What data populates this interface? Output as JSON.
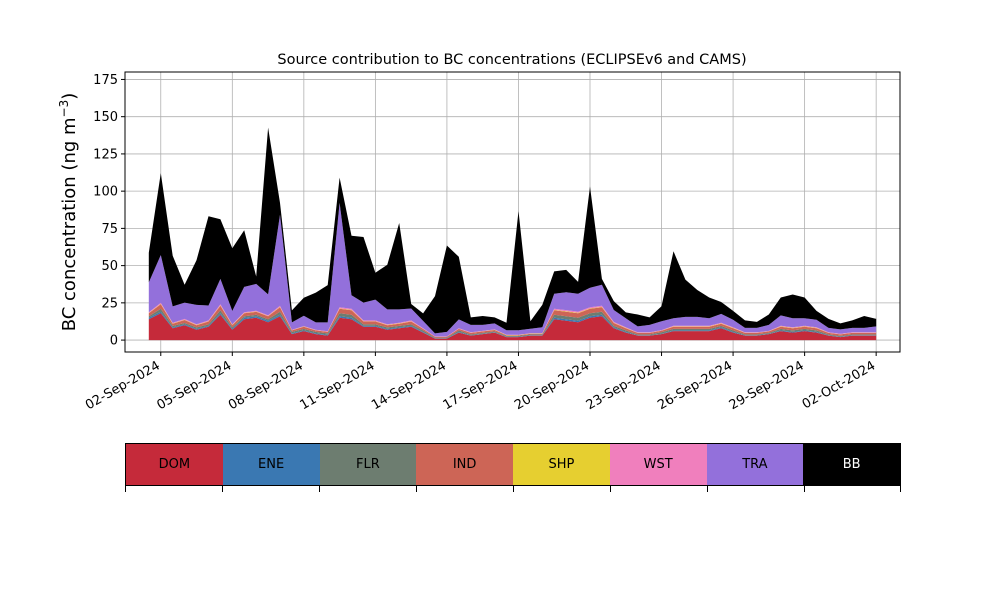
{
  "chart_data": {
    "type": "area",
    "title": "Source contribution to BC concentrations (ECLIPSEv6 and CAMS)",
    "ylabel": "BC concentration (ng m",
    "ylabel_sup": "−3",
    "ylabel_close": ")",
    "ylim": [
      -8,
      180
    ],
    "xlim": [
      "2024-08-31T12:00",
      "2024-10-03T00:00"
    ],
    "grid": true,
    "stacked": true,
    "y_ticks": [
      0,
      25,
      50,
      75,
      100,
      125,
      150,
      175
    ],
    "x_ticks": [
      {
        "date": "2024-09-02",
        "label": "02-Sep-2024"
      },
      {
        "date": "2024-09-05",
        "label": "05-Sep-2024"
      },
      {
        "date": "2024-09-08",
        "label": "08-Sep-2024"
      },
      {
        "date": "2024-09-11",
        "label": "11-Sep-2024"
      },
      {
        "date": "2024-09-14",
        "label": "14-Sep-2024"
      },
      {
        "date": "2024-09-17",
        "label": "17-Sep-2024"
      },
      {
        "date": "2024-09-20",
        "label": "20-Sep-2024"
      },
      {
        "date": "2024-09-23",
        "label": "23-Sep-2024"
      },
      {
        "date": "2024-09-26",
        "label": "26-Sep-2024"
      },
      {
        "date": "2024-09-29",
        "label": "29-Sep-2024"
      },
      {
        "date": "2024-10-02",
        "label": "02-Oct-2024"
      }
    ],
    "x": [
      "2024-09-01T12:00",
      "2024-09-02T00:00",
      "2024-09-02T12:00",
      "2024-09-03T00:00",
      "2024-09-03T12:00",
      "2024-09-04T00:00",
      "2024-09-04T12:00",
      "2024-09-05T00:00",
      "2024-09-05T12:00",
      "2024-09-06T00:00",
      "2024-09-06T12:00",
      "2024-09-07T00:00",
      "2024-09-07T12:00",
      "2024-09-08T00:00",
      "2024-09-08T12:00",
      "2024-09-09T00:00",
      "2024-09-09T12:00",
      "2024-09-10T00:00",
      "2024-09-10T12:00",
      "2024-09-11T00:00",
      "2024-09-11T12:00",
      "2024-09-12T00:00",
      "2024-09-12T12:00",
      "2024-09-13T00:00",
      "2024-09-13T12:00",
      "2024-09-14T00:00",
      "2024-09-14T12:00",
      "2024-09-15T00:00",
      "2024-09-15T12:00",
      "2024-09-16T00:00",
      "2024-09-16T12:00",
      "2024-09-17T00:00",
      "2024-09-17T12:00",
      "2024-09-18T00:00",
      "2024-09-18T12:00",
      "2024-09-19T00:00",
      "2024-09-19T12:00",
      "2024-09-20T00:00",
      "2024-09-20T12:00",
      "2024-09-21T00:00",
      "2024-09-21T12:00",
      "2024-09-22T00:00",
      "2024-09-22T12:00",
      "2024-09-23T00:00",
      "2024-09-23T12:00",
      "2024-09-24T00:00",
      "2024-09-24T12:00",
      "2024-09-25T00:00",
      "2024-09-25T12:00",
      "2024-09-26T00:00",
      "2024-09-26T12:00",
      "2024-09-27T00:00",
      "2024-09-27T12:00",
      "2024-09-28T00:00",
      "2024-09-28T12:00",
      "2024-09-29T00:00",
      "2024-09-29T12:00",
      "2024-09-30T00:00",
      "2024-09-30T12:00",
      "2024-10-01T00:00",
      "2024-10-01T12:00",
      "2024-10-02T00:00"
    ],
    "series": [
      {
        "name": "DOM",
        "color": "#c52a3a",
        "values": [
          14,
          18,
          8,
          10,
          7,
          9,
          17,
          7,
          14,
          15,
          12,
          16,
          4,
          6,
          4,
          3,
          15,
          14,
          9,
          9,
          7,
          8,
          9,
          5,
          1,
          1,
          5,
          3,
          4,
          5,
          2,
          2,
          3,
          3,
          14,
          13,
          12,
          15,
          16,
          8,
          5,
          3,
          3,
          4,
          6,
          6,
          6,
          6,
          8,
          5,
          3,
          3,
          4,
          6,
          5,
          6,
          5,
          3,
          2,
          3,
          3,
          3
        ]
      },
      {
        "name": "ENE",
        "color": "#3a78b2",
        "values": [
          1,
          1,
          0.5,
          0.5,
          0.5,
          0.5,
          1,
          0.5,
          1,
          1,
          1,
          1,
          0.5,
          0.5,
          0.5,
          0.5,
          1,
          1,
          0.5,
          0.5,
          0.5,
          0.5,
          0.5,
          0.5,
          0.2,
          0.2,
          0.5,
          0.3,
          0.3,
          0.3,
          0.3,
          0.3,
          0.3,
          0.3,
          1,
          1,
          1,
          1,
          1,
          0.5,
          0.5,
          0.3,
          0.3,
          0.3,
          0.5,
          0.5,
          0.5,
          0.5,
          0.5,
          0.5,
          0.3,
          0.3,
          0.3,
          0.5,
          0.5,
          0.5,
          0.5,
          0.3,
          0.3,
          0.3,
          0.3,
          0.3
        ]
      },
      {
        "name": "FLR",
        "color": "#6d7d70",
        "values": [
          1,
          2,
          1,
          1,
          1,
          1,
          2,
          1,
          1,
          1,
          1,
          2,
          1,
          1,
          1,
          1,
          2,
          2,
          1,
          1,
          1,
          1,
          1,
          1,
          0.5,
          0.5,
          1,
          0.5,
          0.5,
          0.5,
          0.5,
          0.5,
          0.5,
          0.5,
          2,
          2,
          2,
          2,
          2,
          1,
          1,
          0.5,
          0.5,
          1,
          1,
          1,
          1,
          1,
          1,
          1,
          0.5,
          0.5,
          0.5,
          1,
          1,
          1,
          1,
          0.5,
          0.5,
          0.5,
          0.5,
          0.5
        ]
      },
      {
        "name": "IND",
        "color": "#cd6556",
        "values": [
          2,
          3,
          1.5,
          2,
          1.5,
          2,
          3,
          1.5,
          2,
          2,
          2,
          3,
          1,
          1.5,
          1,
          1,
          3,
          3,
          2,
          2,
          1.5,
          1.5,
          2,
          1,
          0.5,
          0.5,
          1,
          1,
          1,
          1,
          0.5,
          0.5,
          0.5,
          0.5,
          3,
          3,
          3,
          3,
          3,
          2,
          1.5,
          1,
          1,
          1,
          1.5,
          1.5,
          1.5,
          1.5,
          1.5,
          1.5,
          1,
          1,
          1,
          1.5,
          1.5,
          1.5,
          1.5,
          1,
          1,
          1,
          1,
          1
        ]
      },
      {
        "name": "SHP",
        "color": "#e6cf30",
        "values": [
          0.2,
          0.3,
          0.2,
          0.2,
          0.2,
          0.2,
          0.3,
          0.2,
          0.2,
          0.2,
          0.2,
          0.3,
          0.1,
          0.1,
          0.1,
          0.1,
          0.3,
          0.3,
          0.2,
          0.2,
          0.2,
          0.2,
          0.2,
          0.1,
          0.1,
          0.1,
          0.1,
          0.1,
          0.1,
          0.1,
          0.1,
          0.1,
          0.1,
          0.1,
          0.3,
          0.3,
          0.3,
          0.3,
          0.3,
          0.2,
          0.2,
          0.1,
          0.1,
          0.1,
          0.2,
          0.2,
          0.2,
          0.2,
          0.2,
          0.2,
          0.1,
          0.1,
          0.1,
          0.2,
          0.2,
          0.2,
          0.2,
          0.1,
          0.1,
          0.1,
          0.1,
          0.1
        ]
      },
      {
        "name": "WST",
        "color": "#f07fbd",
        "values": [
          0.5,
          0.8,
          0.4,
          0.5,
          0.4,
          0.5,
          0.8,
          0.4,
          0.5,
          0.5,
          0.5,
          0.8,
          0.3,
          0.3,
          0.3,
          0.3,
          0.8,
          0.8,
          0.5,
          0.5,
          0.4,
          0.4,
          0.5,
          0.3,
          0.2,
          0.2,
          0.3,
          0.3,
          0.3,
          0.3,
          0.2,
          0.2,
          0.2,
          0.2,
          0.8,
          0.8,
          0.8,
          0.8,
          0.8,
          0.5,
          0.4,
          0.3,
          0.3,
          0.3,
          0.4,
          0.4,
          0.4,
          0.4,
          0.4,
          0.4,
          0.3,
          0.3,
          0.3,
          0.4,
          0.4,
          0.4,
          0.4,
          0.3,
          0.3,
          0.3,
          0.3,
          0.3
        ]
      },
      {
        "name": "TRA",
        "color": "#9370db",
        "values": [
          20,
          32,
          11,
          11,
          13,
          10,
          17,
          9,
          17,
          18,
          14,
          61,
          5,
          7,
          5,
          6,
          70,
          9,
          12,
          14,
          10,
          9,
          8,
          5,
          2,
          3,
          6,
          5,
          4,
          4,
          3,
          3,
          3,
          4,
          10,
          12,
          12,
          13,
          14,
          8,
          6,
          4,
          5,
          6,
          5,
          6,
          6,
          5,
          6,
          5,
          3,
          3,
          4,
          7,
          6,
          5,
          5,
          3,
          3,
          3,
          3,
          4
        ]
      },
      {
        "name": "BB",
        "color": "#000000",
        "values": [
          20,
          55,
          34,
          12,
          30,
          60,
          40,
          42,
          38,
          5,
          112,
          8,
          8,
          12,
          20,
          25,
          17,
          40,
          44,
          18,
          30,
          58,
          3,
          5,
          25,
          58,
          42,
          5,
          6,
          4,
          5,
          80,
          5,
          15,
          15,
          15,
          8,
          68,
          4,
          6,
          4,
          8,
          5,
          10,
          45,
          25,
          18,
          14,
          8,
          6,
          5,
          4,
          7,
          12,
          16,
          14,
          6,
          6,
          4,
          5,
          8,
          5
        ]
      }
    ]
  },
  "legend": {
    "items": [
      {
        "label": "DOM",
        "color": "#c52a3a",
        "text_color": "#000000"
      },
      {
        "label": "ENE",
        "color": "#3a78b2",
        "text_color": "#000000"
      },
      {
        "label": "FLR",
        "color": "#6d7d70",
        "text_color": "#000000"
      },
      {
        "label": "IND",
        "color": "#cd6556",
        "text_color": "#000000"
      },
      {
        "label": "SHP",
        "color": "#e6cf30",
        "text_color": "#000000"
      },
      {
        "label": "WST",
        "color": "#f07fbd",
        "text_color": "#000000"
      },
      {
        "label": "TRA",
        "color": "#9370db",
        "text_color": "#000000"
      },
      {
        "label": "BB",
        "color": "#000000",
        "text_color": "#ffffff"
      }
    ]
  }
}
